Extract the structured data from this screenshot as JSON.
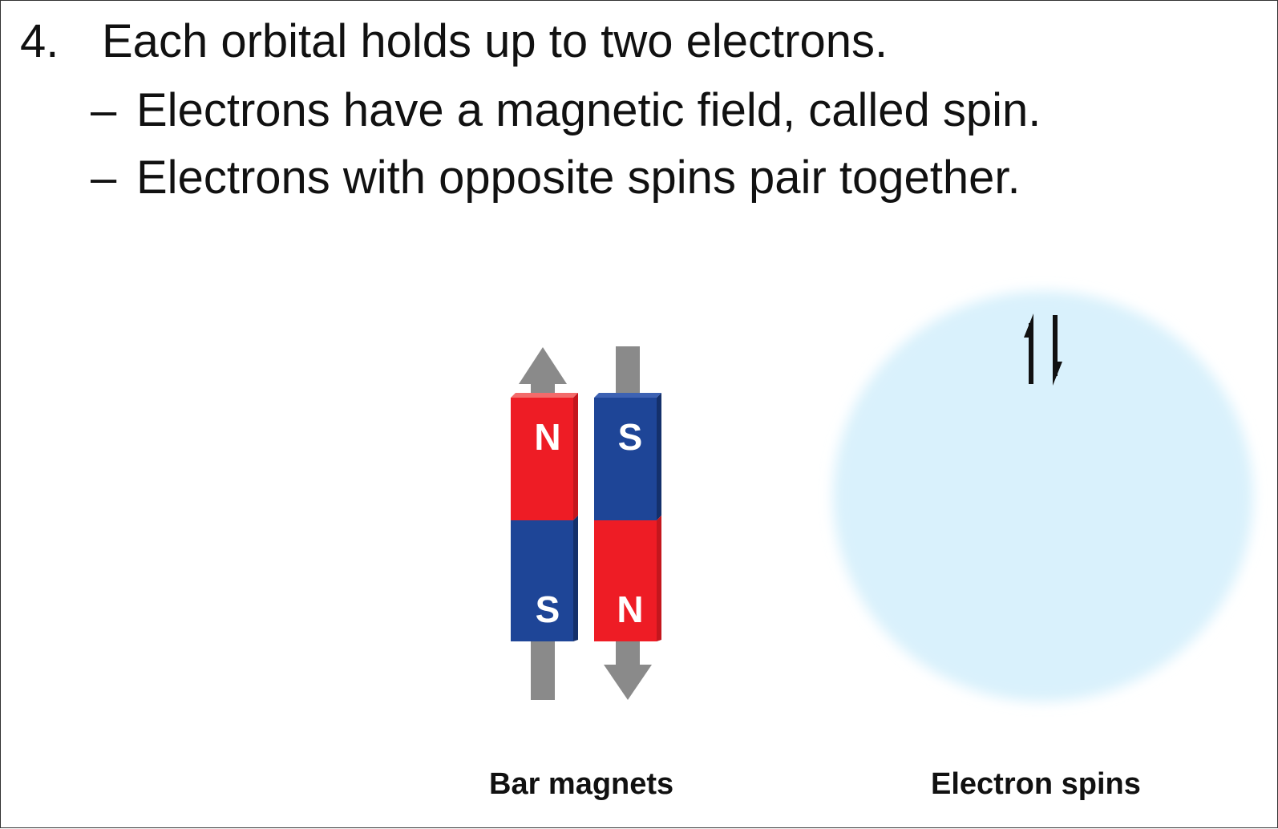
{
  "slide": {
    "point_number": "4.",
    "point_text": "Each orbital holds up to two electrons.",
    "bullet_dash": "–",
    "bullets": [
      "Electrons have a magnetic field, called spin.",
      "Electrons with opposite spins pair together."
    ]
  },
  "figure": {
    "left_magnet": {
      "top_pole": "N",
      "bottom_pole": "S",
      "arrow_direction": "up"
    },
    "right_magnet": {
      "top_pole": "S",
      "bottom_pole": "N",
      "arrow_direction": "down"
    },
    "caption_magnets": "Bar magnets",
    "caption_spins": "Electron spins",
    "spin_pair_glyph": "up-down-half-arrows"
  },
  "colors": {
    "north_red": "#ee1c25",
    "south_blue": "#1e4597",
    "arrow_gray": "#8a8a8a",
    "orbital_blue": "#d9f1fc"
  }
}
